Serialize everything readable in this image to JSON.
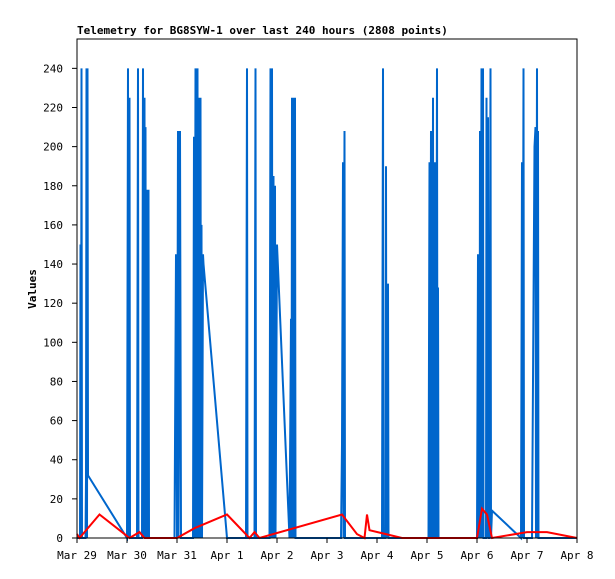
{
  "chart_data": {
    "type": "line",
    "title": "Telemetry for BG8SYW-1 over last 240 hours (2808 points)",
    "ylabel": "Values",
    "xlabel": "",
    "ylim": [
      0,
      255
    ],
    "xlim": [
      0,
      10
    ],
    "yticks": [
      0,
      20,
      40,
      60,
      80,
      100,
      120,
      140,
      160,
      180,
      200,
      220,
      240
    ],
    "xtick_labels": [
      "Mar 29",
      "Mar 30",
      "Mar 31",
      "Apr 1",
      "Apr 2",
      "Apr 3",
      "Apr 4",
      "Apr 5",
      "Apr 6",
      "Apr 7",
      "Apr 8"
    ],
    "grid": false,
    "legend": "none",
    "colors": {
      "blue": "#0066cc",
      "red": "#ff0000",
      "axis": "#000000"
    },
    "series": [
      {
        "color": "#0066cc",
        "points": [
          [
            0.0,
            0
          ],
          [
            0.06,
            0
          ],
          [
            0.07,
            150
          ],
          [
            0.08,
            0
          ],
          [
            0.09,
            240
          ],
          [
            0.1,
            0
          ],
          [
            0.17,
            0
          ],
          [
            0.18,
            30
          ],
          [
            0.19,
            240
          ],
          [
            0.2,
            0
          ],
          [
            0.21,
            240
          ],
          [
            0.22,
            32
          ],
          [
            1.0,
            0
          ],
          [
            1.02,
            240
          ],
          [
            1.03,
            0
          ],
          [
            1.05,
            225
          ],
          [
            1.06,
            0
          ],
          [
            1.2,
            0
          ],
          [
            1.22,
            240
          ],
          [
            1.23,
            0
          ],
          [
            1.3,
            0
          ],
          [
            1.32,
            240
          ],
          [
            1.33,
            0
          ],
          [
            1.35,
            225
          ],
          [
            1.36,
            0
          ],
          [
            1.37,
            210
          ],
          [
            1.38,
            0
          ],
          [
            1.4,
            178
          ],
          [
            1.41,
            0
          ],
          [
            1.43,
            178
          ],
          [
            1.44,
            0
          ],
          [
            1.95,
            0
          ],
          [
            1.98,
            145
          ],
          [
            2.0,
            0
          ],
          [
            2.02,
            208
          ],
          [
            2.03,
            0
          ],
          [
            2.06,
            208
          ],
          [
            2.08,
            0
          ],
          [
            2.32,
            0
          ],
          [
            2.34,
            205
          ],
          [
            2.35,
            0
          ],
          [
            2.37,
            240
          ],
          [
            2.38,
            0
          ],
          [
            2.39,
            210
          ],
          [
            2.4,
            0
          ],
          [
            2.41,
            240
          ],
          [
            2.42,
            0
          ],
          [
            2.43,
            190
          ],
          [
            2.44,
            0
          ],
          [
            2.45,
            225
          ],
          [
            2.46,
            0
          ],
          [
            2.47,
            225
          ],
          [
            2.48,
            0
          ],
          [
            2.49,
            160
          ],
          [
            2.5,
            0
          ],
          [
            2.52,
            145
          ],
          [
            2.53,
            140
          ],
          [
            3.0,
            0
          ],
          [
            3.38,
            0
          ],
          [
            3.4,
            240
          ],
          [
            3.41,
            0
          ],
          [
            3.55,
            0
          ],
          [
            3.57,
            240
          ],
          [
            3.58,
            0
          ],
          [
            3.85,
            0
          ],
          [
            3.87,
            240
          ],
          [
            3.88,
            0
          ],
          [
            3.9,
            240
          ],
          [
            3.91,
            0
          ],
          [
            3.93,
            185
          ],
          [
            3.94,
            0
          ],
          [
            3.96,
            180
          ],
          [
            3.97,
            0
          ],
          [
            4.0,
            150
          ],
          [
            4.25,
            0
          ],
          [
            4.28,
            112
          ],
          [
            4.29,
            0
          ],
          [
            4.3,
            225
          ],
          [
            4.31,
            0
          ],
          [
            4.33,
            225
          ],
          [
            4.34,
            0
          ],
          [
            4.36,
            225
          ],
          [
            4.37,
            0
          ],
          [
            5.28,
            0
          ],
          [
            5.3,
            48
          ],
          [
            5.32,
            192
          ],
          [
            5.33,
            0
          ],
          [
            5.35,
            208
          ],
          [
            5.36,
            0
          ],
          [
            5.55,
            0
          ],
          [
            6.1,
            0
          ],
          [
            6.12,
            240
          ],
          [
            6.13,
            0
          ],
          [
            6.17,
            0
          ],
          [
            6.18,
            190
          ],
          [
            6.19,
            0
          ],
          [
            6.22,
            130
          ],
          [
            6.23,
            0
          ],
          [
            7.03,
            0
          ],
          [
            7.05,
            192
          ],
          [
            7.06,
            0
          ],
          [
            7.08,
            208
          ],
          [
            7.09,
            0
          ],
          [
            7.1,
            175
          ],
          [
            7.11,
            0
          ],
          [
            7.12,
            225
          ],
          [
            7.13,
            0
          ],
          [
            7.15,
            192
          ],
          [
            7.16,
            0
          ],
          [
            7.17,
            192
          ],
          [
            7.18,
            0
          ],
          [
            7.2,
            240
          ],
          [
            7.21,
            0
          ],
          [
            7.22,
            128
          ],
          [
            7.23,
            0
          ],
          [
            7.25,
            0
          ],
          [
            8.0,
            0
          ],
          [
            8.02,
            145
          ],
          [
            8.03,
            0
          ],
          [
            8.04,
            80
          ],
          [
            8.05,
            0
          ],
          [
            8.06,
            208
          ],
          [
            8.07,
            0
          ],
          [
            8.09,
            240
          ],
          [
            8.1,
            0
          ],
          [
            8.12,
            240
          ],
          [
            8.13,
            0
          ],
          [
            8.18,
            0
          ],
          [
            8.19,
            225
          ],
          [
            8.2,
            0
          ],
          [
            8.22,
            215
          ],
          [
            8.23,
            0
          ],
          [
            8.25,
            0
          ],
          [
            8.27,
            240
          ],
          [
            8.28,
            0
          ],
          [
            8.3,
            14
          ],
          [
            8.88,
            0
          ],
          [
            8.9,
            192
          ],
          [
            8.91,
            0
          ],
          [
            8.93,
            240
          ],
          [
            8.94,
            0
          ],
          [
            9.1,
            0
          ],
          [
            9.15,
            200
          ],
          [
            9.17,
            210
          ],
          [
            9.18,
            0
          ],
          [
            9.2,
            240
          ],
          [
            9.21,
            0
          ],
          [
            9.22,
            208
          ],
          [
            9.23,
            0
          ],
          [
            10.0,
            0
          ]
        ]
      },
      {
        "color": "#ff0000",
        "points": [
          [
            0.0,
            2
          ],
          [
            0.05,
            0
          ],
          [
            0.45,
            12
          ],
          [
            1.05,
            0
          ],
          [
            1.25,
            3
          ],
          [
            1.35,
            0
          ],
          [
            2.0,
            0
          ],
          [
            2.35,
            5
          ],
          [
            3.0,
            12
          ],
          [
            3.45,
            0
          ],
          [
            3.55,
            3
          ],
          [
            3.65,
            0
          ],
          [
            5.3,
            12
          ],
          [
            5.6,
            2
          ],
          [
            5.75,
            0
          ],
          [
            5.8,
            12
          ],
          [
            5.85,
            4
          ],
          [
            6.5,
            0
          ],
          [
            8.0,
            0
          ],
          [
            8.1,
            15
          ],
          [
            8.2,
            12
          ],
          [
            8.3,
            0
          ],
          [
            9.0,
            3
          ],
          [
            9.4,
            3
          ],
          [
            10.0,
            0
          ]
        ]
      }
    ]
  }
}
